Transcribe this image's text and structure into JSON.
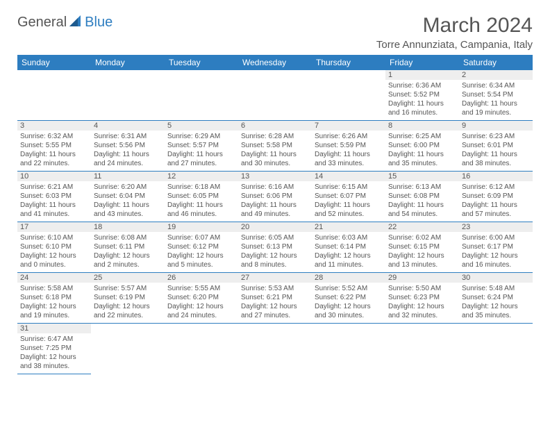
{
  "logo": {
    "word1": "General",
    "word2": "Blue"
  },
  "title": "March 2024",
  "location": "Torre Annunziata, Campania, Italy",
  "colors": {
    "header_bg": "#2d7dc0",
    "daynum_bg": "#eeeeee",
    "text": "#555555",
    "rule": "#2d7dc0"
  },
  "day_headers": [
    "Sunday",
    "Monday",
    "Tuesday",
    "Wednesday",
    "Thursday",
    "Friday",
    "Saturday"
  ],
  "weeks": [
    [
      null,
      null,
      null,
      null,
      null,
      {
        "n": "1",
        "sr": "Sunrise: 6:36 AM",
        "ss": "Sunset: 5:52 PM",
        "d1": "Daylight: 11 hours",
        "d2": "and 16 minutes."
      },
      {
        "n": "2",
        "sr": "Sunrise: 6:34 AM",
        "ss": "Sunset: 5:54 PM",
        "d1": "Daylight: 11 hours",
        "d2": "and 19 minutes."
      }
    ],
    [
      {
        "n": "3",
        "sr": "Sunrise: 6:32 AM",
        "ss": "Sunset: 5:55 PM",
        "d1": "Daylight: 11 hours",
        "d2": "and 22 minutes."
      },
      {
        "n": "4",
        "sr": "Sunrise: 6:31 AM",
        "ss": "Sunset: 5:56 PM",
        "d1": "Daylight: 11 hours",
        "d2": "and 24 minutes."
      },
      {
        "n": "5",
        "sr": "Sunrise: 6:29 AM",
        "ss": "Sunset: 5:57 PM",
        "d1": "Daylight: 11 hours",
        "d2": "and 27 minutes."
      },
      {
        "n": "6",
        "sr": "Sunrise: 6:28 AM",
        "ss": "Sunset: 5:58 PM",
        "d1": "Daylight: 11 hours",
        "d2": "and 30 minutes."
      },
      {
        "n": "7",
        "sr": "Sunrise: 6:26 AM",
        "ss": "Sunset: 5:59 PM",
        "d1": "Daylight: 11 hours",
        "d2": "and 33 minutes."
      },
      {
        "n": "8",
        "sr": "Sunrise: 6:25 AM",
        "ss": "Sunset: 6:00 PM",
        "d1": "Daylight: 11 hours",
        "d2": "and 35 minutes."
      },
      {
        "n": "9",
        "sr": "Sunrise: 6:23 AM",
        "ss": "Sunset: 6:01 PM",
        "d1": "Daylight: 11 hours",
        "d2": "and 38 minutes."
      }
    ],
    [
      {
        "n": "10",
        "sr": "Sunrise: 6:21 AM",
        "ss": "Sunset: 6:03 PM",
        "d1": "Daylight: 11 hours",
        "d2": "and 41 minutes."
      },
      {
        "n": "11",
        "sr": "Sunrise: 6:20 AM",
        "ss": "Sunset: 6:04 PM",
        "d1": "Daylight: 11 hours",
        "d2": "and 43 minutes."
      },
      {
        "n": "12",
        "sr": "Sunrise: 6:18 AM",
        "ss": "Sunset: 6:05 PM",
        "d1": "Daylight: 11 hours",
        "d2": "and 46 minutes."
      },
      {
        "n": "13",
        "sr": "Sunrise: 6:16 AM",
        "ss": "Sunset: 6:06 PM",
        "d1": "Daylight: 11 hours",
        "d2": "and 49 minutes."
      },
      {
        "n": "14",
        "sr": "Sunrise: 6:15 AM",
        "ss": "Sunset: 6:07 PM",
        "d1": "Daylight: 11 hours",
        "d2": "and 52 minutes."
      },
      {
        "n": "15",
        "sr": "Sunrise: 6:13 AM",
        "ss": "Sunset: 6:08 PM",
        "d1": "Daylight: 11 hours",
        "d2": "and 54 minutes."
      },
      {
        "n": "16",
        "sr": "Sunrise: 6:12 AM",
        "ss": "Sunset: 6:09 PM",
        "d1": "Daylight: 11 hours",
        "d2": "and 57 minutes."
      }
    ],
    [
      {
        "n": "17",
        "sr": "Sunrise: 6:10 AM",
        "ss": "Sunset: 6:10 PM",
        "d1": "Daylight: 12 hours",
        "d2": "and 0 minutes."
      },
      {
        "n": "18",
        "sr": "Sunrise: 6:08 AM",
        "ss": "Sunset: 6:11 PM",
        "d1": "Daylight: 12 hours",
        "d2": "and 2 minutes."
      },
      {
        "n": "19",
        "sr": "Sunrise: 6:07 AM",
        "ss": "Sunset: 6:12 PM",
        "d1": "Daylight: 12 hours",
        "d2": "and 5 minutes."
      },
      {
        "n": "20",
        "sr": "Sunrise: 6:05 AM",
        "ss": "Sunset: 6:13 PM",
        "d1": "Daylight: 12 hours",
        "d2": "and 8 minutes."
      },
      {
        "n": "21",
        "sr": "Sunrise: 6:03 AM",
        "ss": "Sunset: 6:14 PM",
        "d1": "Daylight: 12 hours",
        "d2": "and 11 minutes."
      },
      {
        "n": "22",
        "sr": "Sunrise: 6:02 AM",
        "ss": "Sunset: 6:15 PM",
        "d1": "Daylight: 12 hours",
        "d2": "and 13 minutes."
      },
      {
        "n": "23",
        "sr": "Sunrise: 6:00 AM",
        "ss": "Sunset: 6:17 PM",
        "d1": "Daylight: 12 hours",
        "d2": "and 16 minutes."
      }
    ],
    [
      {
        "n": "24",
        "sr": "Sunrise: 5:58 AM",
        "ss": "Sunset: 6:18 PM",
        "d1": "Daylight: 12 hours",
        "d2": "and 19 minutes."
      },
      {
        "n": "25",
        "sr": "Sunrise: 5:57 AM",
        "ss": "Sunset: 6:19 PM",
        "d1": "Daylight: 12 hours",
        "d2": "and 22 minutes."
      },
      {
        "n": "26",
        "sr": "Sunrise: 5:55 AM",
        "ss": "Sunset: 6:20 PM",
        "d1": "Daylight: 12 hours",
        "d2": "and 24 minutes."
      },
      {
        "n": "27",
        "sr": "Sunrise: 5:53 AM",
        "ss": "Sunset: 6:21 PM",
        "d1": "Daylight: 12 hours",
        "d2": "and 27 minutes."
      },
      {
        "n": "28",
        "sr": "Sunrise: 5:52 AM",
        "ss": "Sunset: 6:22 PM",
        "d1": "Daylight: 12 hours",
        "d2": "and 30 minutes."
      },
      {
        "n": "29",
        "sr": "Sunrise: 5:50 AM",
        "ss": "Sunset: 6:23 PM",
        "d1": "Daylight: 12 hours",
        "d2": "and 32 minutes."
      },
      {
        "n": "30",
        "sr": "Sunrise: 5:48 AM",
        "ss": "Sunset: 6:24 PM",
        "d1": "Daylight: 12 hours",
        "d2": "and 35 minutes."
      }
    ],
    [
      {
        "n": "31",
        "sr": "Sunrise: 6:47 AM",
        "ss": "Sunset: 7:25 PM",
        "d1": "Daylight: 12 hours",
        "d2": "and 38 minutes."
      },
      null,
      null,
      null,
      null,
      null,
      null
    ]
  ]
}
